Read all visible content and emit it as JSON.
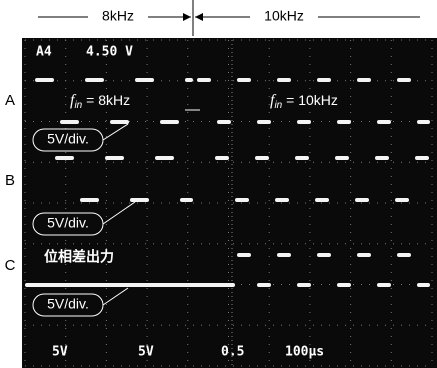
{
  "header": {
    "left_label": "8kHz",
    "right_label": "10kHz"
  },
  "channels": [
    {
      "label": "A",
      "scale": "5V/div."
    },
    {
      "label": "B",
      "scale": "5V/div."
    },
    {
      "label": "C",
      "scale": "5V/div."
    }
  ],
  "annotations": {
    "left_freq": {
      "symbol": "f",
      "subscript": "in",
      "rest": " = 8kHz"
    },
    "right_freq": {
      "symbol": "f",
      "subscript": "in",
      "rest": " = 10kHz"
    },
    "output_label": "位相差出力"
  },
  "scope_readout": {
    "top": [
      "A4",
      "4.50 V"
    ],
    "bottom": [
      "5V",
      "5V",
      "0.5",
      "100μs"
    ]
  }
}
